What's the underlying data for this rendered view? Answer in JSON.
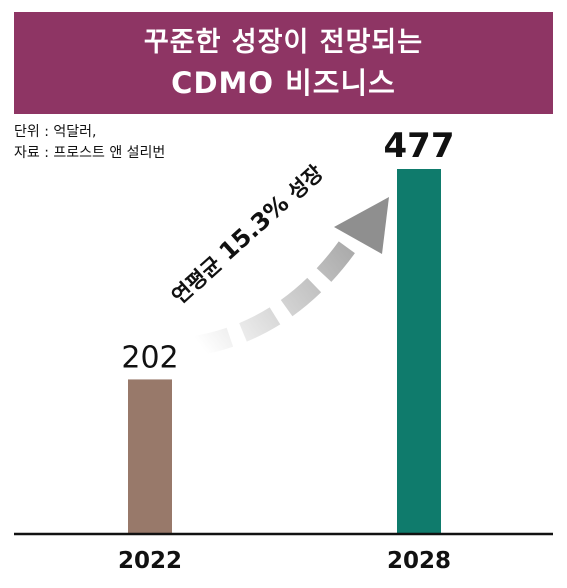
{
  "banner": {
    "line1": "꾸준한 성장이 전망되는",
    "line2": "CDMO 비즈니스"
  },
  "notes": {
    "unit": "단위 : 억달러,",
    "source": "자료 : 프로스트 앤 설리번"
  },
  "annotation": {
    "prefix": "연평균 ",
    "rate": "15.3%",
    "suffix": " 성장"
  },
  "chart_data": {
    "type": "bar",
    "title": "",
    "xlabel": "",
    "ylabel": "",
    "categories": [
      "2022",
      "2028"
    ],
    "values": [
      202,
      477
    ],
    "value_labels": [
      "202",
      "477"
    ],
    "ylim": [
      0,
      500
    ],
    "grid": false,
    "legend": "none",
    "colors": [
      "#98796a",
      "#0f7b6c"
    ]
  },
  "colors": {
    "banner": "#8e3564",
    "arrow": "#9a9a9a",
    "axis": "#111111"
  }
}
